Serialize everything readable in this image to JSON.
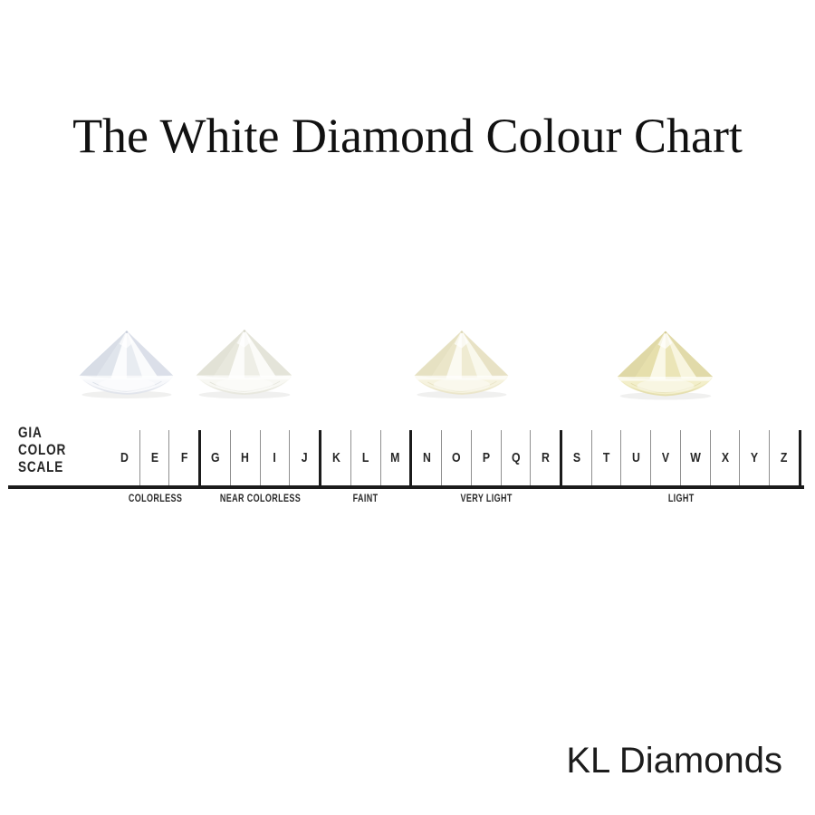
{
  "title": "The White Diamond Colour Chart",
  "brand": "KL Diamonds",
  "gia_label": {
    "lines": [
      "GIA",
      "COLOR",
      "SCALE"
    ]
  },
  "scale": {
    "categories": [
      {
        "label": "COLORLESS",
        "grades": [
          "D",
          "E",
          "F"
        ]
      },
      {
        "label": "NEAR COLORLESS",
        "grades": [
          "G",
          "H",
          "I",
          "J"
        ]
      },
      {
        "label": "FAINT",
        "grades": [
          "K",
          "L",
          "M"
        ]
      },
      {
        "label": "VERY LIGHT",
        "grades": [
          "N",
          "O",
          "P",
          "Q",
          "R"
        ]
      },
      {
        "label": "LIGHT",
        "grades": [
          "S",
          "T",
          "U",
          "V",
          "W",
          "X",
          "Y",
          "Z"
        ]
      }
    ]
  },
  "diamonds": [
    {
      "name": "diamond-colorless",
      "colors": {
        "light": "#f7f8fb",
        "mid": "#dde2ea",
        "dark": "#b9c2d2",
        "accent": "#9db1cb"
      }
    },
    {
      "name": "diamond-near-colorless",
      "colors": {
        "light": "#f8f8f3",
        "mid": "#e6e6da",
        "dark": "#cbcbba",
        "accent": "#d4d4c6"
      }
    },
    {
      "name": "diamond-faint",
      "colors": {
        "light": "#f6f3df",
        "mid": "#eae4c6",
        "dark": "#d6cfa6",
        "accent": "#e0d9b2"
      }
    },
    {
      "name": "diamond-light",
      "colors": {
        "light": "#f3efca",
        "mid": "#e4dda8",
        "dark": "#ccc281",
        "accent": "#d8cf8f"
      }
    }
  ],
  "theme": {
    "bg": "#ffffff",
    "text": "#1e1e1e",
    "line": "#1b1b1b",
    "tick": "#8f8f8f"
  }
}
